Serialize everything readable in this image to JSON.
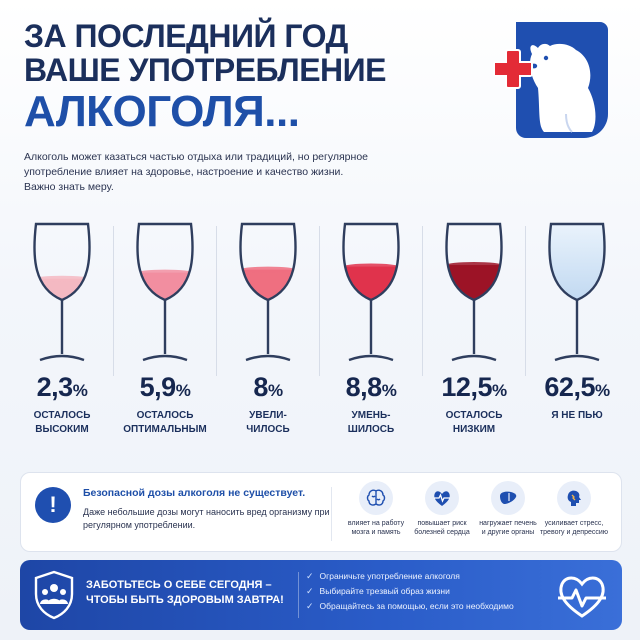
{
  "title": {
    "line1": "За последний год",
    "line2": "ваше употребление",
    "line3": "алкоголя..."
  },
  "intro": "Алкоголь может казаться частью отдыха или традиций, но регулярное употребление влияет на здоровье, настроение и качество жизни. Важно знать меру.",
  "logo": {
    "icon": "polar-bear-medical-cross-logo",
    "cross_color": "#e32b36",
    "bg_color": "#1f4fb0"
  },
  "stats": [
    {
      "value": "2,3",
      "unit": "%",
      "caption": "осталось\nвысоким",
      "fill": 0.28,
      "wine_color": "#f4b9c2"
    },
    {
      "value": "5,9",
      "unit": "%",
      "caption": "осталось\nоптимальным",
      "fill": 0.36,
      "wine_color": "#f28ea0"
    },
    {
      "value": "8",
      "unit": "%",
      "caption": "увели-\nчилось",
      "fill": 0.4,
      "wine_color": "#ef6f80"
    },
    {
      "value": "8,8",
      "unit": "%",
      "caption": "умень-\nшилось",
      "fill": 0.44,
      "wine_color": "#e0334c"
    },
    {
      "value": "12,5",
      "unit": "%",
      "caption": "осталось\nнизким",
      "fill": 0.46,
      "wine_color": "#9c1326"
    },
    {
      "value": "62,5",
      "unit": "%",
      "caption": "я не пью",
      "fill": 0.0,
      "wine_color": "#d6e6f7"
    }
  ],
  "warning": {
    "icon": "exclamation-icon",
    "title": "Безопасной дозы алкоголя не существует.",
    "text": "Даже небольшие дозы могут наносить вред организму при регулярном употреблении."
  },
  "effects": [
    {
      "icon": "brain-icon",
      "text": "влияет на работу\nмозга и память"
    },
    {
      "icon": "heart-pulse-icon",
      "text": "повышает риск\nболезней сердца"
    },
    {
      "icon": "liver-icon",
      "text": "нагружает печень\nи другие органы"
    },
    {
      "icon": "stress-head-icon",
      "text": "усиливает стресс,\nтревогу и депрессию"
    }
  ],
  "bottom": {
    "icon": "shield-people-icon",
    "title": "Заботьтесь о себе сегодня –\nчтобы быть здоровым завтра!",
    "tips": [
      "Ограничьте употребление алкоголя",
      "Выбирайте трезвый образ жизни",
      "Обращайтесь за помощью, если это необходимо"
    ],
    "right_icon": "heart-pulse-icon"
  }
}
